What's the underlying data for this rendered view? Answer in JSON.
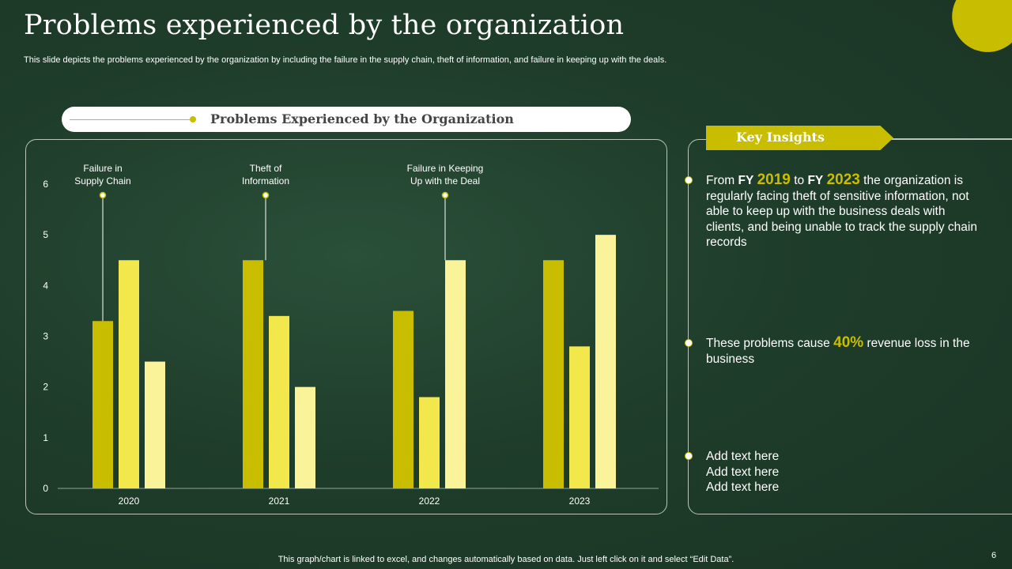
{
  "slide": {
    "title": "Problems experienced by the organization",
    "subtitle": "This slide depicts the problems experienced by the organization by including the failure in the supply chain, theft of information, and failure in keeping up with the deals.",
    "footer": "This graph/chart is linked to excel,  and changes automatically based on data. Just left click on it and select “Edit Data”.",
    "page_number": "6"
  },
  "chart_header": "Problems Experienced by the Organization",
  "chart_data": {
    "type": "bar",
    "title": "Problems Experienced by the Organization",
    "categories": [
      "2020",
      "2021",
      "2022",
      "2023"
    ],
    "series": [
      {
        "name": "Failure in Supply Chain",
        "values": [
          3.3,
          4.5,
          3.5,
          4.5
        ],
        "color": "#c9bd00"
      },
      {
        "name": "Theft of Information",
        "values": [
          4.5,
          3.4,
          1.8,
          2.8
        ],
        "color": "#f2e74b"
      },
      {
        "name": "Failure in Keeping Up with the Deal",
        "values": [
          2.5,
          2.0,
          4.5,
          5.0
        ],
        "color": "#faf39a"
      }
    ],
    "ylim": [
      0,
      6
    ],
    "yticks": [
      0,
      1,
      2,
      3,
      4,
      5,
      6
    ],
    "annotations": [
      {
        "lines": [
          "Failure in",
          "Supply Chain"
        ],
        "category": "2020",
        "series": 0
      },
      {
        "lines": [
          "Theft  of",
          "Information"
        ],
        "category": "2021",
        "series": 1
      },
      {
        "lines": [
          "Failure in Keeping",
          "Up with the Deal"
        ],
        "category": "2022",
        "series": 2
      }
    ],
    "xlabel": "",
    "ylabel": ""
  },
  "insights": {
    "header": "Key Insights",
    "item1": {
      "from": "From",
      "fy1": "FY",
      "year1": "2019",
      "to": "to",
      "fy2": "FY",
      "year2": "2023",
      "rest": "the organization is regularly facing theft of sensitive information, not able to keep up with the business deals with clients, and being unable  to track the supply chain records"
    },
    "item2": {
      "pre": "These problems cause",
      "value": "40%",
      "post": "revenue loss in the business"
    },
    "item3": {
      "lines": [
        "Add text here",
        "Add text here",
        "Add text here"
      ]
    }
  },
  "colors": {
    "accent": "#c9bd00",
    "bar_dark": "#c9bd00",
    "bar_mid": "#f2e74b",
    "bar_light": "#faf39a",
    "background": "#1f3d2b"
  }
}
